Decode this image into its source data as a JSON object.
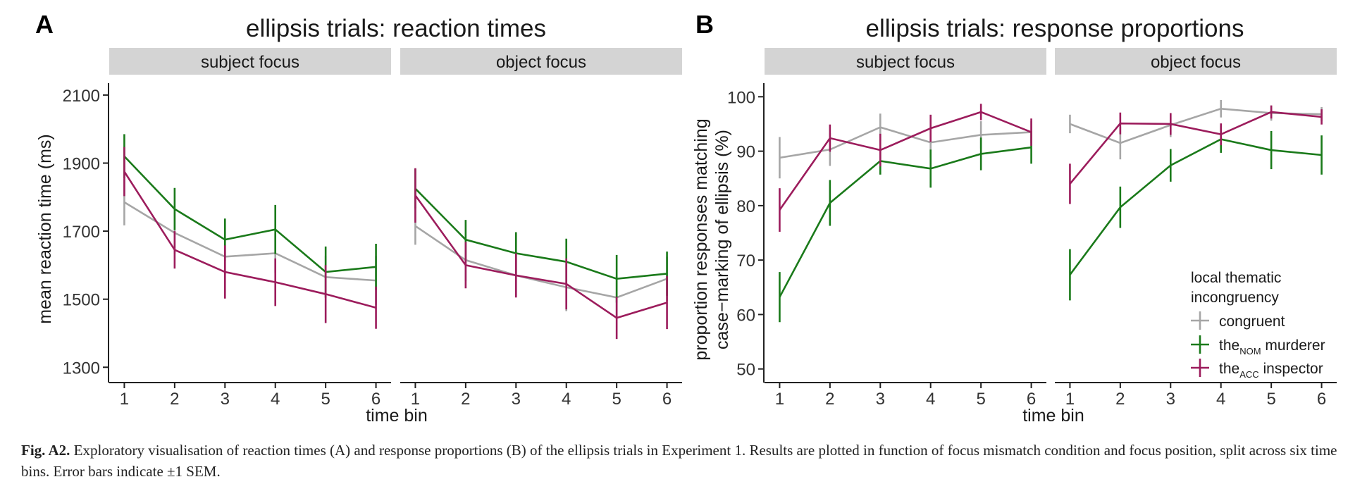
{
  "caption": {
    "label": "Fig. A2.",
    "text": "Exploratory visualisation of reaction times (A) and response proportions (B) of the ellipsis trials in Experiment 1. Results are plotted in function of focus mismatch condition and focus position, split across six time bins. Error bars indicate ±1 SEM."
  },
  "legend": {
    "title_line1": "local thematic",
    "title_line2": "incongruency",
    "items": [
      {
        "pre": "congruent",
        "sub": "",
        "post": ""
      },
      {
        "pre": "the",
        "sub": "NOM",
        "post": " murderer"
      },
      {
        "pre": "the",
        "sub": "ACC",
        "post": " inspector"
      }
    ]
  },
  "colors": {
    "congruent": "#a6a6a6",
    "nom": "#1a7a1a",
    "acc": "#9c1c5c",
    "strip": "#d4d4d4"
  },
  "chart_data": [
    {
      "panel_letter": "A",
      "type": "line",
      "title": "ellipsis trials: reaction times",
      "xlabel": "time bin",
      "ylabel": "mean reaction time (ms)",
      "ylim": [
        1255,
        2135
      ],
      "yticks": [
        1300,
        1500,
        1700,
        1900,
        2100
      ],
      "x": [
        1,
        2,
        3,
        4,
        5,
        6
      ],
      "facets": [
        {
          "strip": "subject focus",
          "series": [
            {
              "key": "congruent",
              "values": [
                1785,
                1695,
                1625,
                1635,
                1565,
                1555
              ],
              "sem": [
                68,
                62,
                52,
                58,
                62,
                72
              ]
            },
            {
              "key": "nom",
              "values": [
                1920,
                1765,
                1675,
                1705,
                1580,
                1595
              ],
              "sem": [
                65,
                62,
                62,
                72,
                75,
                68
              ]
            },
            {
              "key": "acc",
              "values": [
                1875,
                1645,
                1580,
                1550,
                1515,
                1475
              ],
              "sem": [
                72,
                55,
                78,
                70,
                85,
                62
              ]
            }
          ]
        },
        {
          "strip": "object focus",
          "series": [
            {
              "key": "congruent",
              "values": [
                1715,
                1615,
                1570,
                1535,
                1505,
                1560
              ],
              "sem": [
                55,
                62,
                60,
                70,
                62,
                65
              ]
            },
            {
              "key": "nom",
              "values": [
                1825,
                1675,
                1635,
                1610,
                1560,
                1575
              ],
              "sem": [
                58,
                58,
                62,
                68,
                70,
                65
              ]
            },
            {
              "key": "acc",
              "values": [
                1805,
                1600,
                1570,
                1545,
                1445,
                1490
              ],
              "sem": [
                80,
                68,
                65,
                75,
                62,
                78
              ]
            }
          ]
        }
      ]
    },
    {
      "panel_letter": "B",
      "type": "line",
      "title": "ellipsis trials: response proportions",
      "xlabel": "time bin",
      "ylabel_line1": "proportion responses matching",
      "ylabel_line2": "case−marking of ellipsis (%)",
      "ylim": [
        47.5,
        102.5
      ],
      "yticks": [
        50,
        60,
        70,
        80,
        90,
        100
      ],
      "x": [
        1,
        2,
        3,
        4,
        5,
        6
      ],
      "facets": [
        {
          "strip": "subject focus",
          "series": [
            {
              "key": "congruent",
              "values": [
                88.8,
                90.3,
                94.4,
                91.6,
                93.0,
                93.5
              ],
              "sem": [
                3.8,
                3.0,
                2.5,
                2.8,
                2.5,
                2.0
              ]
            },
            {
              "key": "nom",
              "values": [
                63.2,
                80.5,
                88.2,
                86.8,
                89.5,
                90.7
              ],
              "sem": [
                4.6,
                4.2,
                2.5,
                3.5,
                3.0,
                3.0
              ]
            },
            {
              "key": "acc",
              "values": [
                79.2,
                92.4,
                90.2,
                94.2,
                97.2,
                93.5
              ],
              "sem": [
                4.0,
                2.5,
                3.0,
                2.5,
                1.5,
                2.5
              ]
            }
          ]
        },
        {
          "strip": "object focus",
          "series": [
            {
              "key": "congruent",
              "values": [
                95.0,
                91.5,
                94.8,
                97.8,
                97.0,
                96.8
              ],
              "sem": [
                1.7,
                3.0,
                2.2,
                1.6,
                1.4,
                1.3
              ]
            },
            {
              "key": "nom",
              "values": [
                67.3,
                79.7,
                87.4,
                92.2,
                90.2,
                89.3
              ],
              "sem": [
                4.7,
                3.8,
                3.0,
                2.5,
                3.5,
                3.6
              ]
            },
            {
              "key": "acc",
              "values": [
                84.0,
                95.1,
                95.0,
                93.1,
                97.2,
                96.3
              ],
              "sem": [
                3.7,
                2.0,
                2.0,
                2.0,
                1.2,
                1.4
              ]
            }
          ]
        }
      ]
    }
  ]
}
